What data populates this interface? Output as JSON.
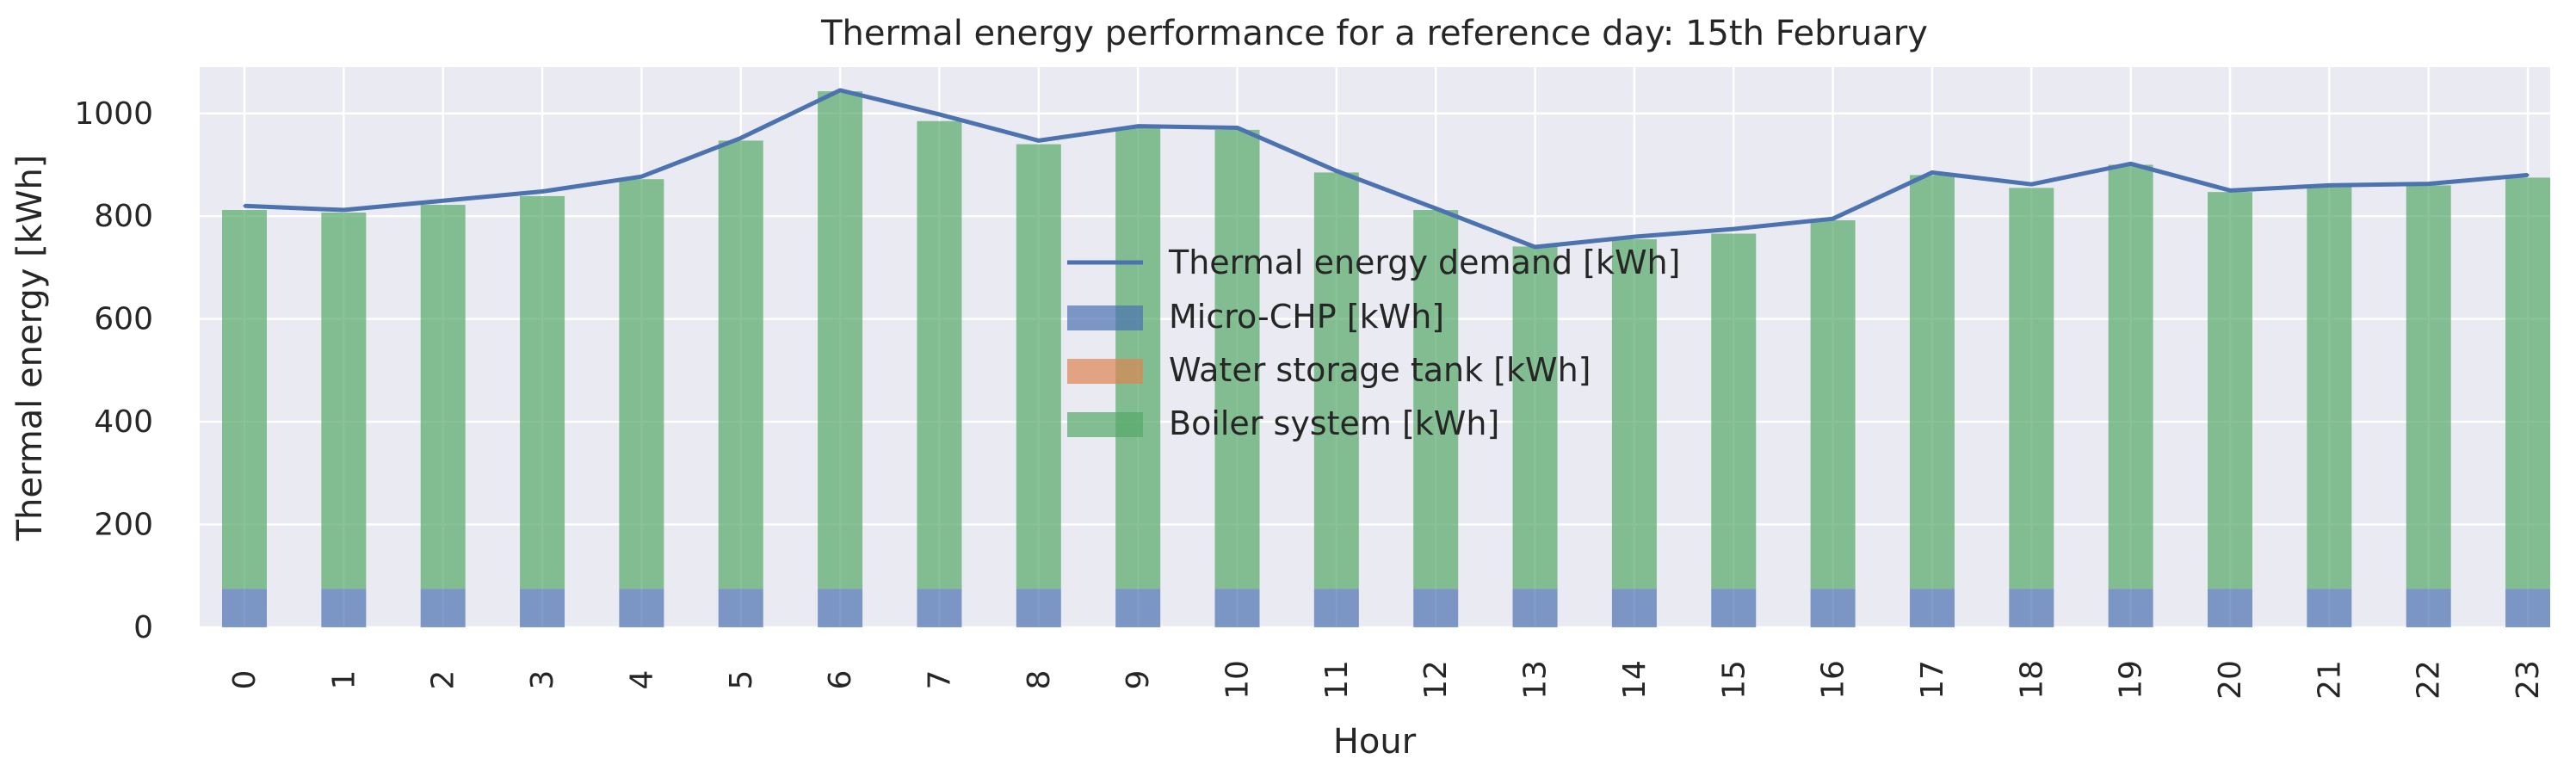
{
  "chart_data": {
    "type": "bar",
    "stacked": true,
    "title": "Thermal energy performance for a reference day: 15th February",
    "xlabel": "Hour",
    "ylabel": "Thermal energy [kWh]",
    "ylim": [
      0,
      1090
    ],
    "yticks": [
      0,
      200,
      400,
      600,
      800,
      1000
    ],
    "grid": true,
    "legend_position": "center",
    "categories": [
      "0",
      "1",
      "2",
      "3",
      "4",
      "5",
      "6",
      "7",
      "8",
      "9",
      "10",
      "11",
      "12",
      "13",
      "14",
      "15",
      "16",
      "17",
      "18",
      "19",
      "20",
      "21",
      "22",
      "23"
    ],
    "series": [
      {
        "name": "Micro-CHP [kWh]",
        "kind": "bar",
        "color": "#4c72b0",
        "values": [
          75,
          75,
          75,
          75,
          75,
          75,
          75,
          75,
          75,
          75,
          75,
          75,
          75,
          75,
          75,
          75,
          75,
          75,
          75,
          75,
          75,
          75,
          75,
          75
        ]
      },
      {
        "name": "Water storage tank [kWh]",
        "kind": "bar",
        "color": "#dd8452",
        "values": [
          0,
          0,
          0,
          0,
          0,
          0,
          0,
          0,
          0,
          0,
          0,
          0,
          0,
          0,
          0,
          0,
          0,
          0,
          0,
          0,
          0,
          0,
          0,
          0
        ]
      },
      {
        "name": "Boiler system [kWh]",
        "kind": "bar",
        "color": "#55a868",
        "values": [
          737,
          732,
          747,
          764,
          797,
          872,
          968,
          910,
          865,
          898,
          893,
          810,
          737,
          666,
          680,
          691,
          717,
          805,
          780,
          825,
          772,
          782,
          785,
          800
        ]
      }
    ],
    "line_series": {
      "name": "Thermal energy demand [kWh]",
      "kind": "line",
      "color": "#4c72b0",
      "values": [
        820,
        812,
        830,
        848,
        877,
        952,
        1045,
        998,
        947,
        975,
        972,
        888,
        815,
        740,
        760,
        775,
        795,
        885,
        862,
        902,
        850,
        860,
        863,
        880
      ]
    }
  }
}
